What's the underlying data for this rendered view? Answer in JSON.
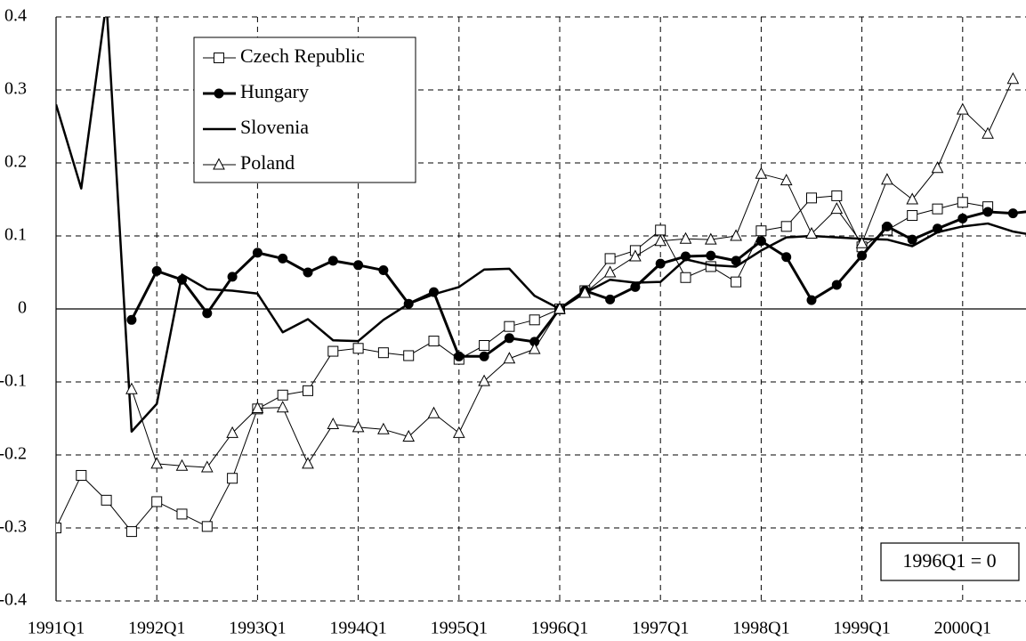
{
  "chart_data": {
    "type": "line",
    "categories": [
      "1991Q1",
      null,
      null,
      null,
      "1992Q1",
      null,
      null,
      null,
      "1993Q1",
      null,
      null,
      null,
      "1994Q1",
      null,
      null,
      null,
      "1995Q1",
      null,
      null,
      null,
      "1996Q1",
      null,
      null,
      null,
      "1997Q1",
      null,
      null,
      null,
      "1998Q1",
      null,
      null,
      null,
      "1999Q1",
      null,
      null,
      null,
      "2000Q1",
      null,
      null,
      null
    ],
    "series": [
      {
        "name": "Czech Republic",
        "color": "#000000",
        "marker": "square",
        "line_width": 1,
        "values": [
          -0.3,
          -0.228,
          -0.262,
          -0.305,
          -0.264,
          -0.281,
          -0.298,
          -0.232,
          -0.137,
          -0.118,
          -0.112,
          -0.058,
          -0.054,
          -0.06,
          -0.064,
          -0.044,
          -0.069,
          -0.05,
          -0.024,
          -0.015,
          0,
          0.025,
          0.069,
          0.08,
          0.108,
          0.043,
          0.058,
          0.037,
          0.107,
          0.113,
          0.152,
          0.155,
          0.085,
          0.108,
          0.128,
          0.137,
          0.146,
          0.14,
          null,
          null
        ]
      },
      {
        "name": "Hungary",
        "color": "#000000",
        "marker": "circle",
        "line_width": 3,
        "values": [
          null,
          null,
          null,
          -0.015,
          0.052,
          0.04,
          -0.006,
          0.044,
          0.077,
          0.069,
          0.05,
          0.066,
          0.06,
          0.053,
          0.007,
          0.023,
          -0.065,
          -0.065,
          -0.04,
          -0.045,
          0,
          0.025,
          0.013,
          0.03,
          0.062,
          0.072,
          0.073,
          0.066,
          0.093,
          0.071,
          0.012,
          0.033,
          0.073,
          0.113,
          0.095,
          0.11,
          0.124,
          0.133,
          0.131,
          0.135
        ]
      },
      {
        "name": "Slovenia",
        "color": "#000000",
        "marker": "none",
        "line_width": 2.5,
        "values": [
          0.28,
          0.165,
          0.42,
          -0.168,
          -0.13,
          0.047,
          0.027,
          0.025,
          0.021,
          -0.032,
          -0.014,
          -0.043,
          -0.044,
          -0.015,
          0.007,
          0.02,
          0.03,
          0.054,
          0.055,
          0.018,
          0,
          0.022,
          0.04,
          0.036,
          0.037,
          0.068,
          0.06,
          0.058,
          0.08,
          0.098,
          0.1,
          0.098,
          0.096,
          0.095,
          0.086,
          0.105,
          0.113,
          0.117,
          0.106,
          0.1
        ]
      },
      {
        "name": "Poland",
        "color": "#000000",
        "marker": "triangle",
        "line_width": 1,
        "values": [
          null,
          null,
          null,
          -0.11,
          -0.212,
          -0.215,
          -0.217,
          -0.17,
          -0.136,
          -0.135,
          -0.212,
          -0.158,
          -0.162,
          -0.165,
          -0.175,
          -0.143,
          -0.17,
          -0.099,
          -0.068,
          -0.055,
          0,
          0.022,
          0.05,
          0.072,
          0.093,
          0.096,
          0.095,
          0.1,
          0.185,
          0.176,
          0.103,
          0.137,
          0.09,
          0.177,
          0.15,
          0.193,
          0.273,
          0.24,
          0.315,
          null
        ]
      }
    ],
    "ylim": [
      -0.4,
      0.4
    ],
    "yticks": [
      -0.4,
      -0.3,
      -0.2,
      -0.1,
      0,
      0.1,
      0.2,
      0.3,
      0.4
    ],
    "grid": true,
    "legend": "upper-left",
    "annotation": "1996Q1 = 0"
  }
}
